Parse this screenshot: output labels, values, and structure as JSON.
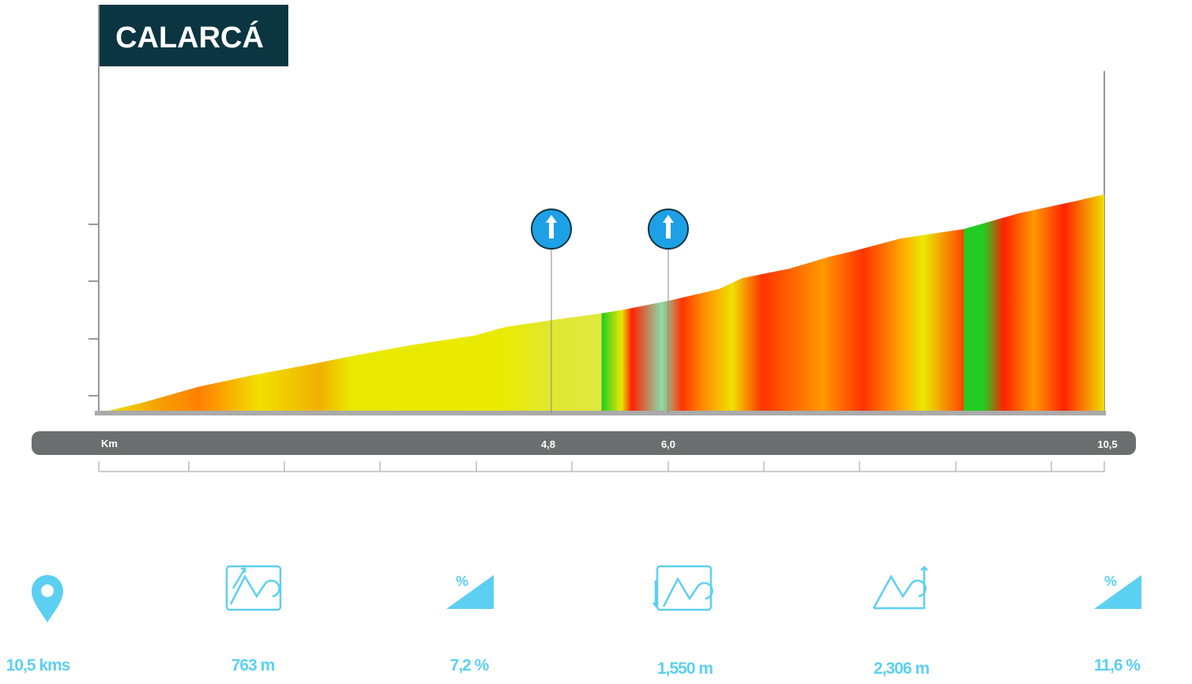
{
  "header": {
    "title": "CALARCÁ"
  },
  "axis": {
    "unit": "Km",
    "marks": [
      "4,8",
      "6,0"
    ],
    "end": "10,5"
  },
  "stats": [
    "10,5 kms",
    "763 m",
    "7,2 %",
    "1,550 m",
    "2,306 m",
    "11,6 %"
  ]
}
